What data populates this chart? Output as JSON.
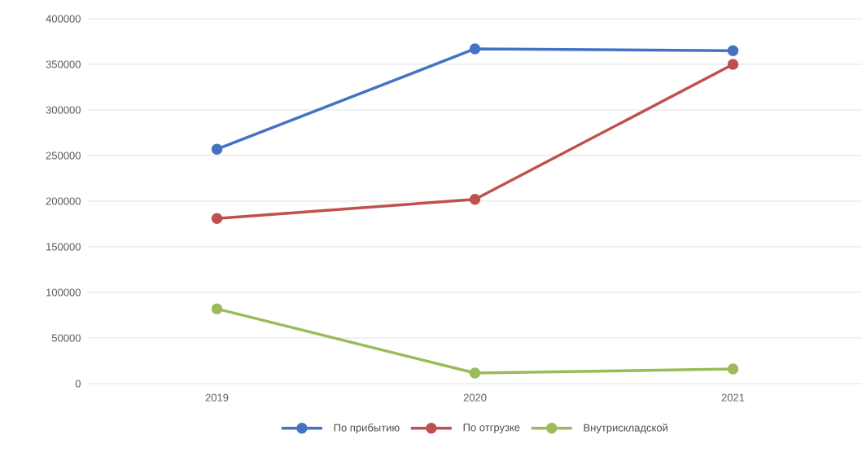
{
  "chart_data": {
    "type": "line",
    "categories": [
      "2019",
      "2020",
      "2021"
    ],
    "series": [
      {
        "name": "По прибытию",
        "color": "#4472c4",
        "values": [
          257000,
          367000,
          365000
        ]
      },
      {
        "name": "По отгрузке",
        "color": "#c0504d",
        "values": [
          181000,
          202000,
          350000
        ]
      },
      {
        "name": "Внутрискладской",
        "color": "#9bbb59",
        "values": [
          82000,
          11600,
          16000
        ]
      }
    ],
    "ylim": [
      0,
      400000
    ],
    "yticks": [
      0,
      50000,
      100000,
      150000,
      200000,
      250000,
      300000,
      350000,
      400000
    ],
    "grid": "y",
    "legend": "bottom",
    "marker": "circle",
    "line_style": "solid"
  }
}
